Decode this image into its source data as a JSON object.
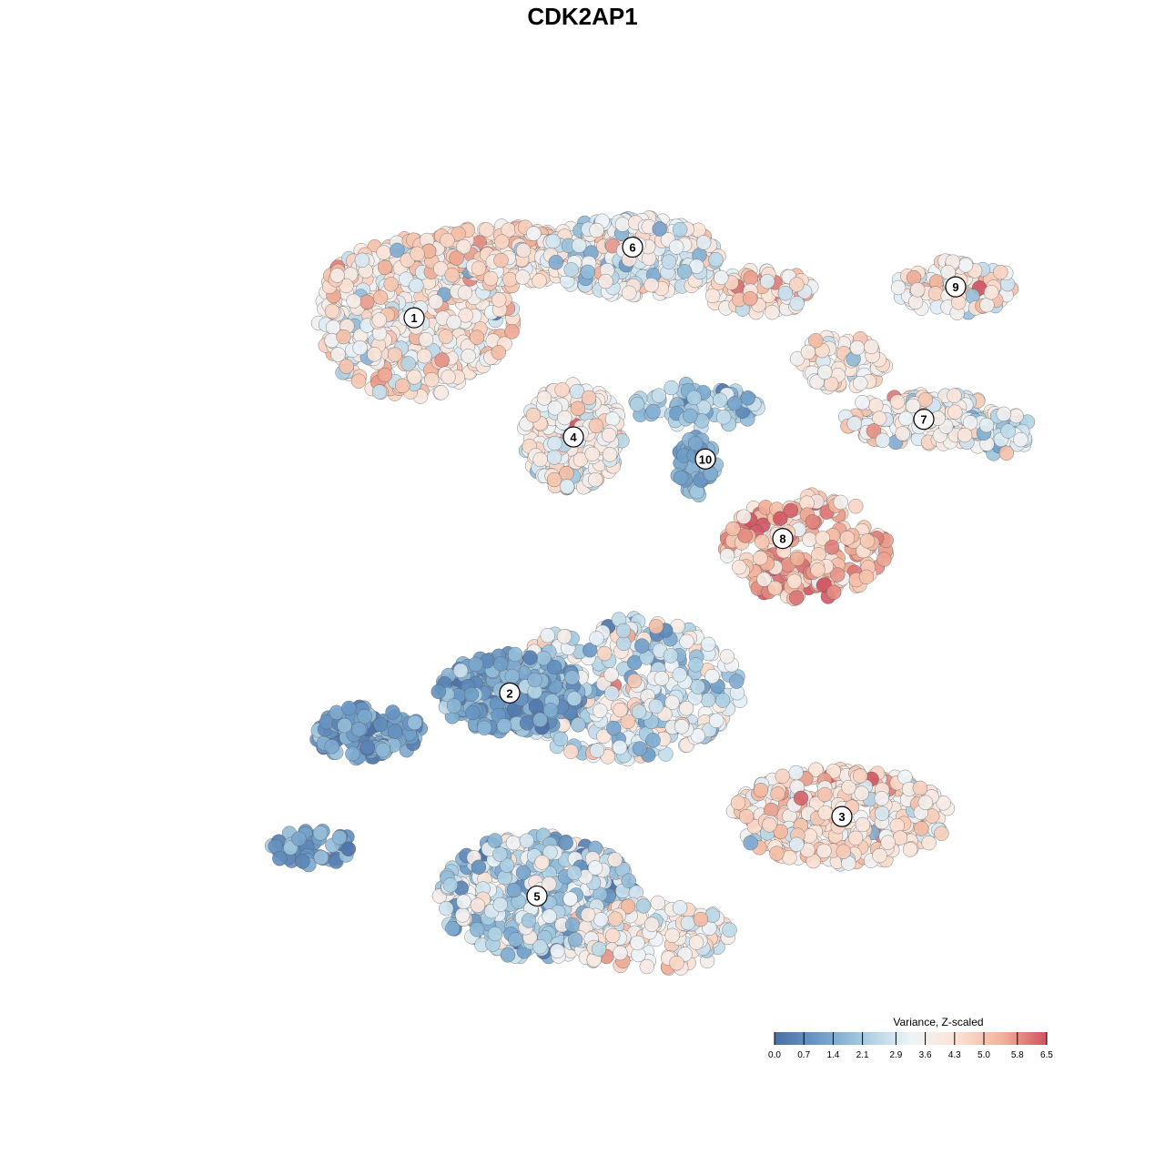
{
  "chart_data": {
    "type": "scatter",
    "title": "CDK2AP1",
    "subtitle": "",
    "xlabel": "",
    "ylabel": "",
    "grid": false,
    "colorbar": {
      "title": "Variance, Z-scaled",
      "range": [
        0.0,
        6.5
      ],
      "ticks": [
        0.0,
        0.7,
        1.4,
        2.1,
        2.9,
        3.6,
        4.3,
        5.0,
        5.8,
        6.5
      ],
      "tick_labels": [
        "0.0",
        "0.7",
        "1.4",
        "2.1",
        "2.9",
        "3.6",
        "4.3",
        "5.0",
        "5.8",
        "6.5"
      ],
      "colors": [
        "#4a6fa5",
        "#6d9cc7",
        "#a8cde2",
        "#eef4f8",
        "#fbe3d6",
        "#f2b49a",
        "#cf5461"
      ],
      "placement": "bottom-right"
    },
    "clusters": [
      {
        "label": "1",
        "x": -2.1,
        "y": 2.7,
        "mean_value": 3.9
      },
      {
        "label": "2",
        "x": -1.05,
        "y": -1.55,
        "mean_value": 1.2
      },
      {
        "label": "3",
        "x": 2.6,
        "y": -2.95,
        "mean_value": 4.2
      },
      {
        "label": "4",
        "x": -0.35,
        "y": 1.35,
        "mean_value": 3.8
      },
      {
        "label": "5",
        "x": -0.75,
        "y": -3.85,
        "mean_value": 2.3
      },
      {
        "label": "6",
        "x": 0.3,
        "y": 3.5,
        "mean_value": 3.5
      },
      {
        "label": "7",
        "x": 3.5,
        "y": 1.55,
        "mean_value": 3.7
      },
      {
        "label": "8",
        "x": 1.95,
        "y": 0.2,
        "mean_value": 5.3
      },
      {
        "label": "9",
        "x": 3.85,
        "y": 3.05,
        "mean_value": 4.0
      },
      {
        "label": "10",
        "x": 1.1,
        "y": 1.1,
        "mean_value": 1.5
      }
    ],
    "legend": {
      "title": "Variance, Z-scaled",
      "placement": "bottom-right"
    }
  },
  "colors": {
    "low": "#4a6fa5",
    "mid": "#f7f7f7",
    "high": "#cf5461",
    "point_stroke": "#555555"
  }
}
